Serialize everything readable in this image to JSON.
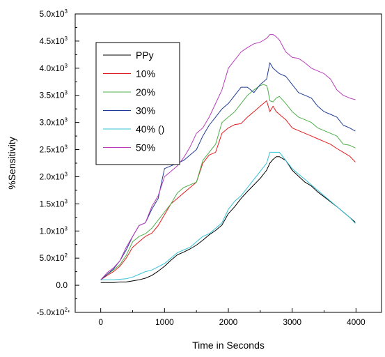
{
  "chart_data": {
    "type": "line",
    "title": "",
    "xlabel": "Time in Seconds",
    "ylabel": "%Sensitivity",
    "xlim": [
      -400,
      4400
    ],
    "ylim": [
      -500,
      5000
    ],
    "x_ticks": [
      {
        "value": 0,
        "label": "0"
      },
      {
        "value": 1000,
        "label": "1000"
      },
      {
        "value": 2000,
        "label": "2000"
      },
      {
        "value": 3000,
        "label": "3000"
      },
      {
        "value": 4000,
        "label": "4000"
      }
    ],
    "y_ticks": [
      {
        "value": -500,
        "mant": "-5.0x10",
        "exp": "2"
      },
      {
        "value": 0,
        "mant": "0.0",
        "exp": ""
      },
      {
        "value": 500,
        "mant": "5.0x10",
        "exp": "2"
      },
      {
        "value": 1000,
        "mant": "1.0x10",
        "exp": "3"
      },
      {
        "value": 1500,
        "mant": "1.5x10",
        "exp": "3"
      },
      {
        "value": 2000,
        "mant": "2.0x10",
        "exp": "3"
      },
      {
        "value": 2500,
        "mant": "2.5x10",
        "exp": "3"
      },
      {
        "value": 3000,
        "mant": "3.0x10",
        "exp": "3"
      },
      {
        "value": 3500,
        "mant": "3.5x10",
        "exp": "3"
      },
      {
        "value": 4000,
        "mant": "4.0x10",
        "exp": "3"
      },
      {
        "value": 4500,
        "mant": "4.5x10",
        "exp": "3"
      },
      {
        "value": 5000,
        "mant": "5.0x10",
        "exp": "3"
      }
    ],
    "grid": false,
    "legend_position": "top-left",
    "series": [
      {
        "name": "PPy",
        "color": "#000000",
        "x": [
          0,
          100,
          200,
          300,
          400,
          500,
          600,
          700,
          800,
          900,
          1000,
          1100,
          1200,
          1300,
          1400,
          1500,
          1600,
          1700,
          1800,
          1900,
          2000,
          2100,
          2200,
          2300,
          2400,
          2500,
          2600,
          2650,
          2700,
          2750,
          2800,
          2900,
          3000,
          3100,
          3200,
          3300,
          3400,
          3500,
          3600,
          3700,
          3800,
          3900,
          3990
        ],
        "y": [
          50,
          50,
          50,
          60,
          60,
          80,
          100,
          130,
          180,
          260,
          350,
          460,
          560,
          610,
          670,
          740,
          830,
          930,
          1010,
          1110,
          1320,
          1450,
          1600,
          1730,
          1850,
          1970,
          2120,
          2250,
          2320,
          2370,
          2370,
          2300,
          2120,
          2010,
          1900,
          1830,
          1720,
          1630,
          1540,
          1450,
          1350,
          1250,
          1160
        ]
      },
      {
        "name": "10%",
        "color": "#e41a1c",
        "x": [
          0,
          100,
          200,
          300,
          400,
          500,
          600,
          700,
          800,
          900,
          1000,
          1100,
          1200,
          1300,
          1400,
          1500,
          1600,
          1700,
          1800,
          1900,
          2000,
          2100,
          2200,
          2300,
          2400,
          2500,
          2600,
          2650,
          2700,
          2750,
          2800,
          2900,
          3000,
          3100,
          3200,
          3300,
          3400,
          3500,
          3600,
          3700,
          3800,
          3900,
          3990
        ],
        "y": [
          100,
          180,
          250,
          350,
          500,
          700,
          800,
          900,
          960,
          1100,
          1300,
          1500,
          1600,
          1700,
          1800,
          1900,
          2250,
          2400,
          2450,
          2800,
          2900,
          2960,
          2980,
          3100,
          3200,
          3300,
          3400,
          3200,
          3300,
          3200,
          3150,
          3050,
          2900,
          2850,
          2800,
          2750,
          2700,
          2650,
          2600,
          2520,
          2450,
          2380,
          2270
        ]
      },
      {
        "name": "20%",
        "color": "#4daf4a",
        "x": [
          0,
          100,
          200,
          300,
          400,
          500,
          600,
          700,
          800,
          900,
          1000,
          1100,
          1200,
          1300,
          1400,
          1500,
          1600,
          1700,
          1800,
          1900,
          2000,
          2100,
          2200,
          2300,
          2400,
          2500,
          2550,
          2600,
          2620,
          2650,
          2700,
          2750,
          2800,
          2900,
          3000,
          3100,
          3200,
          3300,
          3400,
          3500,
          3600,
          3700,
          3800,
          3900,
          3990
        ],
        "y": [
          100,
          200,
          280,
          380,
          550,
          800,
          900,
          950,
          1050,
          1200,
          1350,
          1500,
          1700,
          1800,
          1850,
          1900,
          2300,
          2450,
          2600,
          3000,
          3100,
          3200,
          3350,
          3500,
          3600,
          3680,
          3700,
          3680,
          3600,
          3400,
          3380,
          3450,
          3480,
          3350,
          3200,
          3100,
          3050,
          3000,
          2900,
          2850,
          2800,
          2750,
          2600,
          2580,
          2530
        ]
      },
      {
        "name": "30%",
        "color": "#1f3a93",
        "x": [
          0,
          100,
          200,
          300,
          400,
          500,
          600,
          700,
          800,
          900,
          1000,
          1100,
          1200,
          1300,
          1400,
          1500,
          1600,
          1700,
          1800,
          1900,
          2000,
          2100,
          2200,
          2300,
          2400,
          2500,
          2600,
          2650,
          2700,
          2750,
          2800,
          2900,
          3000,
          3100,
          3200,
          3300,
          3400,
          3500,
          3600,
          3700,
          3800,
          3900,
          3990
        ],
        "y": [
          100,
          200,
          300,
          450,
          650,
          900,
          1100,
          1150,
          1400,
          1600,
          2150,
          2200,
          2250,
          2300,
          2400,
          2500,
          2750,
          2950,
          3100,
          3250,
          3350,
          3500,
          3650,
          3650,
          3550,
          3700,
          3800,
          4100,
          4000,
          3950,
          3900,
          3850,
          3700,
          3550,
          3500,
          3450,
          3300,
          3200,
          3150,
          3100,
          2950,
          2900,
          2840
        ]
      },
      {
        "name": "40% ()",
        "color": "#33c2d6",
        "x": [
          0,
          100,
          200,
          300,
          400,
          500,
          600,
          700,
          800,
          900,
          1000,
          1100,
          1200,
          1300,
          1400,
          1500,
          1600,
          1700,
          1800,
          1900,
          2000,
          2100,
          2200,
          2300,
          2400,
          2500,
          2600,
          2650,
          2700,
          2750,
          2800,
          2900,
          3000,
          3100,
          3200,
          3300,
          3400,
          3500,
          3600,
          3700,
          3800,
          3900,
          3990
        ],
        "y": [
          100,
          100,
          100,
          110,
          120,
          150,
          200,
          250,
          280,
          340,
          400,
          500,
          600,
          650,
          700,
          800,
          900,
          950,
          1050,
          1150,
          1400,
          1550,
          1650,
          1800,
          1950,
          2100,
          2250,
          2450,
          2450,
          2450,
          2450,
          2300,
          2150,
          2050,
          1950,
          1850,
          1750,
          1650,
          1550,
          1450,
          1350,
          1250,
          1140
        ]
      },
      {
        "name": "50%",
        "color": "#b83dba",
        "x": [
          0,
          100,
          200,
          300,
          400,
          500,
          600,
          700,
          800,
          900,
          1000,
          1100,
          1200,
          1300,
          1400,
          1500,
          1600,
          1700,
          1800,
          1900,
          2000,
          2100,
          2200,
          2300,
          2400,
          2500,
          2600,
          2650,
          2700,
          2750,
          2800,
          2900,
          3000,
          3100,
          3200,
          3300,
          3400,
          3500,
          3600,
          3700,
          3800,
          3900,
          3990
        ],
        "y": [
          100,
          230,
          320,
          450,
          700,
          900,
          1100,
          1150,
          1450,
          1650,
          2000,
          2100,
          2200,
          2350,
          2550,
          2800,
          2900,
          3100,
          3350,
          3600,
          4000,
          4150,
          4300,
          4380,
          4450,
          4480,
          4550,
          4620,
          4620,
          4580,
          4520,
          4300,
          4200,
          4180,
          4100,
          4000,
          3950,
          3900,
          3800,
          3600,
          3500,
          3450,
          3420
        ]
      }
    ]
  }
}
